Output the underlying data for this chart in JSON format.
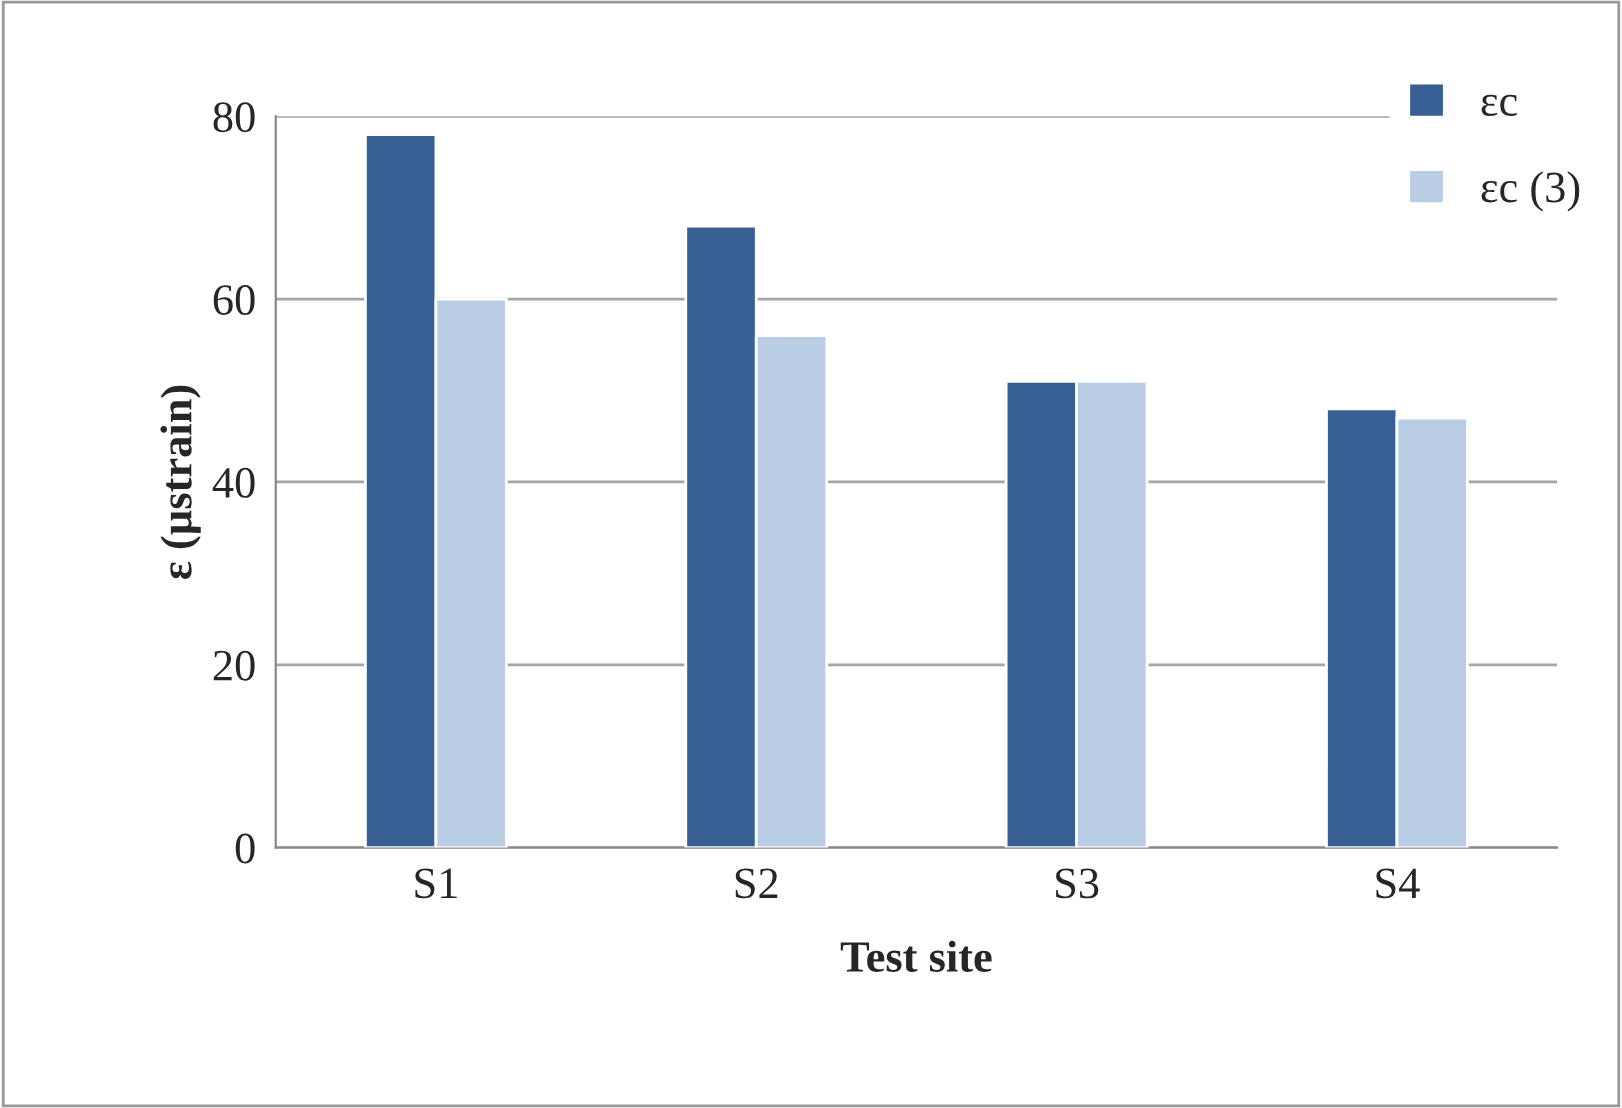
{
  "chart_data": {
    "type": "bar",
    "xlabel": "Test site",
    "ylabel": "ε (µstrain)",
    "categories": [
      "S1",
      "S2",
      "S3",
      "S4"
    ],
    "series": [
      {
        "name": "εc",
        "color": "#375f93",
        "values": [
          78,
          68,
          51,
          48
        ]
      },
      {
        "name": "εc (3)",
        "color": "#b9cde5",
        "values": [
          60,
          56,
          51,
          47
        ]
      }
    ],
    "ylim": [
      0,
      80
    ],
    "yticks": [
      0,
      20,
      40,
      60,
      80
    ],
    "grid": "y",
    "legend": "top right"
  }
}
